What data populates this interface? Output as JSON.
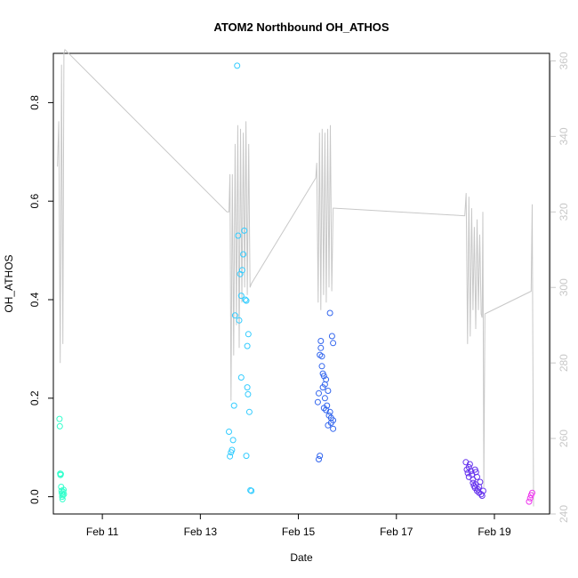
{
  "chart_data": {
    "type": "scatter",
    "title": "ATOM2 Northbound OH_ATHOS",
    "xlabel": "Date",
    "ylabel": "OH_ATHOS",
    "x_ticks": [
      "Feb 11",
      "Feb 13",
      "Feb 15",
      "Feb 17",
      "Feb 19"
    ],
    "y_ticks": [
      "0.0",
      "0.2",
      "0.4",
      "0.6",
      "0.8"
    ],
    "right_ticks": [
      "240",
      "260",
      "280",
      "300",
      "320",
      "340",
      "360"
    ],
    "xlim": [
      "Feb 10 00:00",
      "Feb 20 03:00"
    ],
    "ylim": [
      -0.035,
      0.9
    ],
    "right_ylim": [
      240,
      362
    ],
    "grid": false,
    "colors": {
      "flight1": "#33ffcc",
      "flight2": "#33ccff",
      "flight3": "#3366ee",
      "flight4": "#6633ee",
      "flight5": "#ee33ee",
      "line": "#c8c8c8"
    },
    "points": [
      {
        "series": "flight1",
        "color": "#33ffcc",
        "values": [
          [
            "Feb 10 03:00",
            0.158
          ],
          [
            "Feb 10 03:10",
            0.143
          ],
          [
            "Feb 10 03:20",
            0.047
          ],
          [
            "Feb 10 03:30",
            0.044
          ],
          [
            "Feb 10 03:40",
            0.046
          ],
          [
            "Feb 10 03:50",
            0.02
          ],
          [
            "Feb 10 04:00",
            0.012
          ],
          [
            "Feb 10 04:10",
            0.007
          ],
          [
            "Feb 10 04:20",
            0.0
          ],
          [
            "Feb 10 04:30",
            -0.005
          ],
          [
            "Feb 10 04:40",
            0.003
          ],
          [
            "Feb 10 04:50",
            0.01
          ],
          [
            "Feb 10 05:00",
            0.014
          ],
          [
            "Feb 10 05:10",
            0.005
          ]
        ]
      },
      {
        "series": "flight2",
        "color": "#33ccff",
        "values": [
          [
            "Feb 13 14:00",
            0.132
          ],
          [
            "Feb 13 14:30",
            0.082
          ],
          [
            "Feb 13 15:00",
            0.09
          ],
          [
            "Feb 13 15:30",
            0.095
          ],
          [
            "Feb 13 16:00",
            0.115
          ],
          [
            "Feb 13 16:30",
            0.185
          ],
          [
            "Feb 13 17:00",
            0.368
          ],
          [
            "Feb 13 18:00",
            0.875
          ],
          [
            "Feb 13 18:30",
            0.53
          ],
          [
            "Feb 13 19:00",
            0.358
          ],
          [
            "Feb 13 19:30",
            0.452
          ],
          [
            "Feb 13 20:00",
            0.408
          ],
          [
            "Feb 13 20:30",
            0.46
          ],
          [
            "Feb 13 21:00",
            0.492
          ],
          [
            "Feb 13 21:30",
            0.54
          ],
          [
            "Feb 13 20:00",
            0.242
          ],
          [
            "Feb 13 22:00",
            0.4
          ],
          [
            "Feb 13 22:30",
            0.398
          ],
          [
            "Feb 13 23:00",
            0.306
          ],
          [
            "Feb 13 23:30",
            0.33
          ],
          [
            "Feb 13 22:30",
            0.083
          ],
          [
            "Feb 13 23:00",
            0.222
          ],
          [
            "Feb 13 23:20",
            0.208
          ],
          [
            "Feb 14 00:00",
            0.172
          ],
          [
            "Feb 14 00:30",
            0.013
          ],
          [
            "Feb 14 01:00",
            0.012
          ]
        ]
      },
      {
        "series": "flight3",
        "color": "#3366ee",
        "values": [
          [
            "Feb 15 09:30",
            0.192
          ],
          [
            "Feb 15 10:00",
            0.21
          ],
          [
            "Feb 15 10:00",
            0.076
          ],
          [
            "Feb 15 10:30",
            0.083
          ],
          [
            "Feb 15 10:30",
            0.288
          ],
          [
            "Feb 15 11:00",
            0.302
          ],
          [
            "Feb 15 11:00",
            0.316
          ],
          [
            "Feb 15 11:30",
            0.285
          ],
          [
            "Feb 15 11:30",
            0.265
          ],
          [
            "Feb 15 12:00",
            0.25
          ],
          [
            "Feb 15 12:00",
            0.222
          ],
          [
            "Feb 15 12:30",
            0.245
          ],
          [
            "Feb 15 12:30",
            0.18
          ],
          [
            "Feb 15 13:00",
            0.2
          ],
          [
            "Feb 15 13:00",
            0.228
          ],
          [
            "Feb 15 13:30",
            0.238
          ],
          [
            "Feb 15 13:30",
            0.176
          ],
          [
            "Feb 15 14:00",
            0.185
          ],
          [
            "Feb 15 14:30",
            0.145
          ],
          [
            "Feb 15 14:30",
            0.215
          ],
          [
            "Feb 15 15:00",
            0.165
          ],
          [
            "Feb 15 15:30",
            0.172
          ],
          [
            "Feb 15 15:30",
            0.373
          ],
          [
            "Feb 15 16:00",
            0.16
          ],
          [
            "Feb 15 16:00",
            0.15
          ],
          [
            "Feb 15 16:30",
            0.326
          ],
          [
            "Feb 15 17:00",
            0.312
          ],
          [
            "Feb 15 17:00",
            0.155
          ],
          [
            "Feb 15 17:00",
            0.138
          ]
        ]
      },
      {
        "series": "flight4",
        "color": "#6633ee",
        "values": [
          [
            "Feb 18 10:00",
            0.07
          ],
          [
            "Feb 18 10:30",
            0.055
          ],
          [
            "Feb 18 11:00",
            0.048
          ],
          [
            "Feb 18 11:30",
            0.04
          ],
          [
            "Feb 18 11:30",
            0.06
          ],
          [
            "Feb 18 12:00",
            0.066
          ],
          [
            "Feb 18 12:30",
            0.052
          ],
          [
            "Feb 18 13:00",
            0.045
          ],
          [
            "Feb 18 13:30",
            0.035
          ],
          [
            "Feb 18 13:30",
            0.028
          ],
          [
            "Feb 18 14:00",
            0.022
          ],
          [
            "Feb 18 14:30",
            0.018
          ],
          [
            "Feb 18 14:30",
            0.055
          ],
          [
            "Feb 18 15:00",
            0.05
          ],
          [
            "Feb 18 15:30",
            0.04
          ],
          [
            "Feb 18 15:30",
            0.012
          ],
          [
            "Feb 18 16:00",
            0.015
          ],
          [
            "Feb 18 16:30",
            0.008
          ],
          [
            "Feb 18 16:30",
            0.02
          ],
          [
            "Feb 18 17:00",
            0.03
          ],
          [
            "Feb 18 17:30",
            0.005
          ],
          [
            "Feb 18 18:00",
            0.002
          ],
          [
            "Feb 18 18:30",
            0.012
          ],
          [
            "Feb 18 15:00",
            0.025
          ]
        ]
      },
      {
        "series": "flight5",
        "color": "#ee33ee",
        "values": [
          [
            "Feb 19 17:00",
            -0.01
          ],
          [
            "Feb 19 17:30",
            -0.003
          ],
          [
            "Feb 19 18:00",
            0.003
          ],
          [
            "Feb 19 18:30",
            0.008
          ]
        ]
      }
    ],
    "line_series": {
      "axis": "right",
      "color": "#c8c8c8",
      "values": [
        [
          "Feb 10 02:00",
          332
        ],
        [
          "Feb 10 02:40",
          344
        ],
        [
          "Feb 10 03:20",
          280
        ],
        [
          "Feb 10 04:00",
          359
        ],
        [
          "Feb 10 04:40",
          285
        ],
        [
          "Feb 10 05:10",
          362
        ],
        [
          "Feb 10 05:40",
          363
        ],
        [
          "Feb 13 13:00",
          320
        ],
        [
          "Feb 13 14:00",
          320
        ],
        [
          "Feb 13 14:30",
          330
        ],
        [
          "Feb 13 15:00",
          270
        ],
        [
          "Feb 13 15:40",
          330
        ],
        [
          "Feb 13 16:20",
          282
        ],
        [
          "Feb 13 17:00",
          338
        ],
        [
          "Feb 13 17:40",
          290
        ],
        [
          "Feb 13 18:20",
          343
        ],
        [
          "Feb 13 19:00",
          284
        ],
        [
          "Feb 13 19:40",
          342
        ],
        [
          "Feb 13 20:20",
          296
        ],
        [
          "Feb 13 21:00",
          341
        ],
        [
          "Feb 13 21:40",
          300
        ],
        [
          "Feb 13 22:20",
          344
        ],
        [
          "Feb 13 23:00",
          298
        ],
        [
          "Feb 13 23:40",
          338
        ],
        [
          "Feb 14 00:20",
          300
        ],
        [
          "Feb 14 01:00",
          301
        ],
        [
          "Feb 15 08:30",
          329
        ],
        [
          "Feb 15 09:00",
          333
        ],
        [
          "Feb 15 09:40",
          296
        ],
        [
          "Feb 15 10:20",
          341
        ],
        [
          "Feb 15 11:00",
          294
        ],
        [
          "Feb 15 11:40",
          342
        ],
        [
          "Feb 15 12:20",
          298
        ],
        [
          "Feb 15 13:00",
          341
        ],
        [
          "Feb 15 13:40",
          296
        ],
        [
          "Feb 15 14:20",
          342
        ],
        [
          "Feb 15 15:00",
          300
        ],
        [
          "Feb 15 15:40",
          343
        ],
        [
          "Feb 15 16:20",
          299
        ],
        [
          "Feb 15 17:00",
          321
        ],
        [
          "Feb 15 17:40",
          321
        ],
        [
          "Feb 18 09:00",
          319
        ],
        [
          "Feb 18 09:30",
          319
        ],
        [
          "Feb 18 10:10",
          325
        ],
        [
          "Feb 18 10:50",
          285
        ],
        [
          "Feb 18 11:30",
          324
        ],
        [
          "Feb 18 12:10",
          287
        ],
        [
          "Feb 18 12:50",
          321
        ],
        [
          "Feb 18 13:30",
          294
        ],
        [
          "Feb 18 14:10",
          316
        ],
        [
          "Feb 18 14:50",
          289
        ],
        [
          "Feb 18 15:30",
          318
        ],
        [
          "Feb 18 16:10",
          294
        ],
        [
          "Feb 18 16:50",
          314
        ],
        [
          "Feb 18 17:30",
          293
        ],
        [
          "Feb 18 18:00",
          292
        ],
        [
          "Feb 18 18:20",
          320
        ],
        [
          "Feb 18 18:50",
          247
        ],
        [
          "Feb 18 19:20",
          293
        ],
        [
          "Feb 19 18:00",
          299
        ],
        [
          "Feb 19 18:30",
          322
        ],
        [
          "Feb 19 19:10",
          242
        ]
      ]
    }
  }
}
